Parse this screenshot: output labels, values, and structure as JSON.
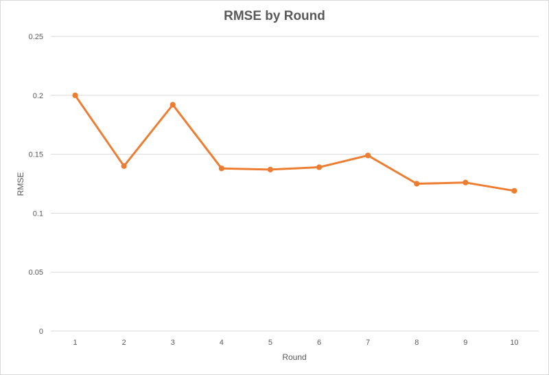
{
  "chart_data": {
    "type": "line",
    "title": "RMSE by Round",
    "xlabel": "Round",
    "ylabel": "RMSE",
    "categories": [
      "1",
      "2",
      "3",
      "4",
      "5",
      "6",
      "7",
      "8",
      "9",
      "10"
    ],
    "series": [
      {
        "values": [
          0.2,
          0.14,
          0.192,
          0.138,
          0.137,
          0.139,
          0.149,
          0.125,
          0.126,
          0.119
        ],
        "color": "#ed7d31"
      }
    ],
    "ylim": [
      0,
      0.25
    ],
    "yticks": [
      "0",
      "0.05",
      "0.1",
      "0.15",
      "0.2",
      "0.25"
    ],
    "grid": "horizontal",
    "legend": "none",
    "markers": "circle"
  }
}
